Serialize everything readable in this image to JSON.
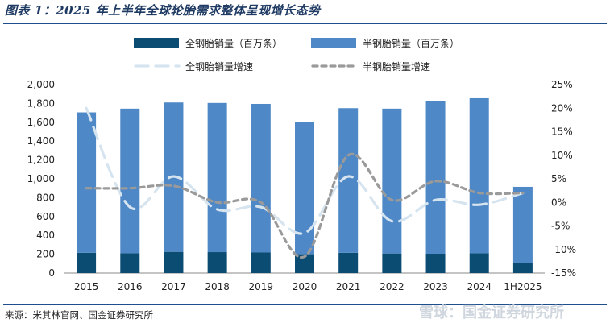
{
  "figure": {
    "title": "图表 1：2025 年上半年全球轮胎需求整体呈现增长态势",
    "source": "来源：米其林官网、国金证券研究所",
    "watermark": "雪球：国金证券研究所"
  },
  "chart_data": {
    "type": "bar",
    "categories": [
      "2015",
      "2016",
      "2017",
      "2018",
      "2019",
      "2020",
      "2021",
      "2022",
      "2023",
      "2024",
      "1H2025"
    ],
    "series": [
      {
        "name": "全钢胎销量（百万条）",
        "type": "bar",
        "stack": "total",
        "axis": "left",
        "color": "#0b4c73",
        "values": [
          215,
          210,
          225,
          222,
          218,
          200,
          215,
          208,
          205,
          210,
          105
        ]
      },
      {
        "name": "半钢胎销量（百万条）",
        "type": "bar",
        "stack": "total",
        "axis": "left",
        "color": "#4f88c6",
        "values": [
          1490,
          1535,
          1585,
          1583,
          1577,
          1400,
          1535,
          1537,
          1617,
          1645,
          810
        ]
      },
      {
        "name": "全钢胎销量增速",
        "type": "line",
        "axis": "right",
        "color": "#d6e4f0",
        "dash": "long",
        "values": [
          20.0,
          -1.0,
          5.5,
          -1.5,
          -1.0,
          -6.5,
          5.5,
          -4.0,
          0.5,
          -0.5,
          2.0
        ]
      },
      {
        "name": "半钢胎销量增速",
        "type": "line",
        "axis": "right",
        "color": "#9a9a9a",
        "dash": "short",
        "values": [
          3.0,
          3.0,
          3.5,
          0.0,
          0.0,
          -11.5,
          10.0,
          0.5,
          4.5,
          2.0,
          2.0
        ]
      }
    ],
    "yleft": {
      "ticks": [
        "0",
        "200",
        "400",
        "600",
        "800",
        "1,000",
        "1,200",
        "1,400",
        "1,600",
        "1,800",
        "2,000"
      ],
      "ylim": [
        0,
        2000
      ]
    },
    "yright": {
      "ticks": [
        "-15%",
        "-10%",
        "-5%",
        "0%",
        "5%",
        "10%",
        "15%",
        "20%",
        "25%"
      ],
      "ylim": [
        -15,
        25
      ]
    },
    "grid": false,
    "legend": "top"
  }
}
